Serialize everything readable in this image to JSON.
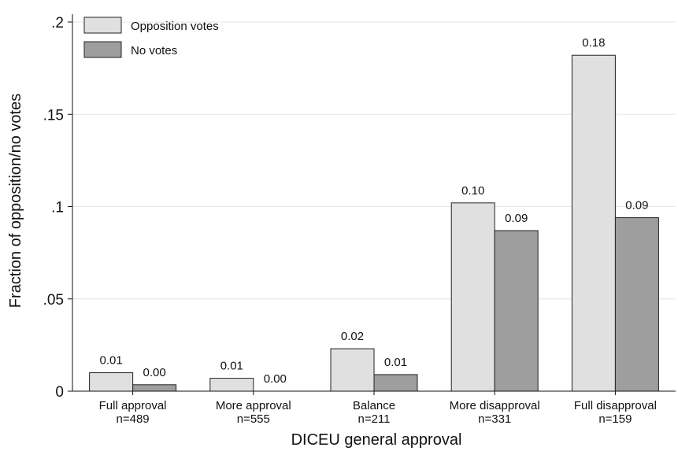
{
  "chart_data": {
    "type": "bar",
    "xlabel": "DICEU general approval",
    "ylabel": "Fraction of opposition/no votes",
    "ylim": [
      0,
      0.2
    ],
    "yticks": [
      {
        "value": 0,
        "label": "0"
      },
      {
        "value": 0.05,
        "label": ".05"
      },
      {
        "value": 0.1,
        "label": ".1"
      },
      {
        "value": 0.15,
        "label": ".15"
      },
      {
        "value": 0.2,
        "label": ".2"
      }
    ],
    "grid": true,
    "legend_position": "top-left",
    "categories": [
      {
        "label": "Full approval",
        "n": "n=489"
      },
      {
        "label": "More approval",
        "n": "n=555"
      },
      {
        "label": "Balance",
        "n": "n=211"
      },
      {
        "label": "More disapproval",
        "n": "n=331"
      },
      {
        "label": "Full disapproval",
        "n": "n=159"
      }
    ],
    "series": [
      {
        "name": "Opposition votes",
        "color": "#e0e0e0",
        "values": [
          0.01,
          0.007,
          0.023,
          0.102,
          0.182
        ],
        "labels": [
          "0.01",
          "0.01",
          "0.02",
          "0.10",
          "0.18"
        ]
      },
      {
        "name": "No votes",
        "color": "#9e9e9e",
        "values": [
          0.0035,
          0.0,
          0.009,
          0.087,
          0.094
        ],
        "labels": [
          "0.00",
          "0.00",
          "0.01",
          "0.09",
          "0.09"
        ]
      }
    ]
  }
}
